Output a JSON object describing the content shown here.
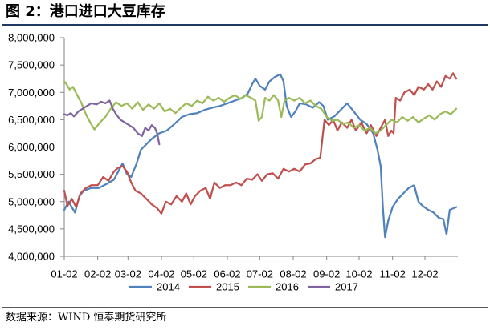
{
  "chart_data": {
    "type": "line",
    "title": "图 2：港口进口大豆库存",
    "xlabel": "",
    "ylabel": "",
    "xlim": [
      "01-02",
      "12-31"
    ],
    "ylim": [
      4000000,
      8000000
    ],
    "x_ticks": [
      "01-02",
      "02-02",
      "03-02",
      "04-02",
      "05-02",
      "06-02",
      "07-02",
      "08-02",
      "09-02",
      "10-02",
      "11-02",
      "12-02"
    ],
    "y_ticks": [
      "4,000,000",
      "4,500,000",
      "5,000,000",
      "5,500,000",
      "6,000,000",
      "6,500,000",
      "7,000,000",
      "7,500,000",
      "8,000,000"
    ],
    "grid": false,
    "legend": "bottom",
    "series": [
      {
        "name": "2014",
        "color": "#4f81bd",
        "points": [
          [
            "01-02",
            4850000
          ],
          [
            "01-06",
            5000000
          ],
          [
            "01-12",
            4800000
          ],
          [
            "01-16",
            5100000
          ],
          [
            "01-20",
            5200000
          ],
          [
            "01-27",
            5250000
          ],
          [
            "02-03",
            5250000
          ],
          [
            "02-10",
            5320000
          ],
          [
            "02-17",
            5400000
          ],
          [
            "02-21",
            5550000
          ],
          [
            "02-25",
            5700000
          ],
          [
            "03-01",
            5500000
          ],
          [
            "03-05",
            5450000
          ],
          [
            "03-10",
            5700000
          ],
          [
            "03-14",
            5950000
          ],
          [
            "03-19",
            6050000
          ],
          [
            "03-24",
            6150000
          ],
          [
            "03-31",
            6250000
          ],
          [
            "04-07",
            6300000
          ],
          [
            "04-14",
            6420000
          ],
          [
            "04-21",
            6550000
          ],
          [
            "04-28",
            6600000
          ],
          [
            "05-05",
            6620000
          ],
          [
            "05-12",
            6680000
          ],
          [
            "05-19",
            6720000
          ],
          [
            "05-26",
            6750000
          ],
          [
            "06-02",
            6800000
          ],
          [
            "06-09",
            6850000
          ],
          [
            "06-16",
            6900000
          ],
          [
            "06-21",
            6980000
          ],
          [
            "06-25",
            7150000
          ],
          [
            "06-28",
            7250000
          ],
          [
            "07-02",
            7120000
          ],
          [
            "07-07",
            7050000
          ],
          [
            "07-11",
            7200000
          ],
          [
            "07-16",
            7280000
          ],
          [
            "07-21",
            7330000
          ],
          [
            "07-24",
            7200000
          ],
          [
            "07-27",
            6750000
          ],
          [
            "07-31",
            6550000
          ],
          [
            "08-04",
            6650000
          ],
          [
            "08-08",
            6800000
          ],
          [
            "08-14",
            6780000
          ],
          [
            "08-20",
            6720000
          ],
          [
            "08-26",
            6820000
          ],
          [
            "08-30",
            6750000
          ],
          [
            "09-03",
            6500000
          ],
          [
            "09-09",
            6560000
          ],
          [
            "09-15",
            6680000
          ],
          [
            "09-21",
            6800000
          ],
          [
            "09-27",
            6650000
          ],
          [
            "10-03",
            6500000
          ],
          [
            "10-09",
            6420000
          ],
          [
            "10-15",
            6250000
          ],
          [
            "10-19",
            5950000
          ],
          [
            "10-22",
            5650000
          ],
          [
            "10-24",
            4900000
          ],
          [
            "10-26",
            4350000
          ],
          [
            "10-29",
            4650000
          ],
          [
            "11-02",
            4900000
          ],
          [
            "11-07",
            5050000
          ],
          [
            "11-12",
            5150000
          ],
          [
            "11-17",
            5250000
          ],
          [
            "11-22",
            5300000
          ],
          [
            "11-26",
            5000000
          ],
          [
            "11-30",
            4920000
          ],
          [
            "12-05",
            4850000
          ],
          [
            "12-10",
            4800000
          ],
          [
            "12-15",
            4700000
          ],
          [
            "12-19",
            4680000
          ],
          [
            "12-22",
            4400000
          ],
          [
            "12-25",
            4850000
          ],
          [
            "12-31",
            4900000
          ]
        ]
      },
      {
        "name": "2015",
        "color": "#c0504d",
        "points": [
          [
            "01-02",
            5200000
          ],
          [
            "01-05",
            4920000
          ],
          [
            "01-09",
            5050000
          ],
          [
            "01-13",
            4900000
          ],
          [
            "01-17",
            5150000
          ],
          [
            "01-22",
            5250000
          ],
          [
            "01-27",
            5300000
          ],
          [
            "02-02",
            5300000
          ],
          [
            "02-07",
            5450000
          ],
          [
            "02-12",
            5380000
          ],
          [
            "02-17",
            5550000
          ],
          [
            "02-21",
            5620000
          ],
          [
            "02-25",
            5650000
          ],
          [
            "03-01",
            5550000
          ],
          [
            "03-05",
            5350000
          ],
          [
            "03-09",
            5200000
          ],
          [
            "03-14",
            5150000
          ],
          [
            "03-19",
            5050000
          ],
          [
            "03-24",
            4950000
          ],
          [
            "03-29",
            4880000
          ],
          [
            "04-02",
            4780000
          ],
          [
            "04-06",
            5000000
          ],
          [
            "04-11",
            4950000
          ],
          [
            "04-16",
            5100000
          ],
          [
            "04-21",
            5000000
          ],
          [
            "04-25",
            5150000
          ],
          [
            "04-29",
            4950000
          ],
          [
            "05-03",
            5100000
          ],
          [
            "05-08",
            5200000
          ],
          [
            "05-13",
            5250000
          ],
          [
            "05-17",
            5050000
          ],
          [
            "05-21",
            5350000
          ],
          [
            "05-26",
            5250000
          ],
          [
            "05-31",
            5300000
          ],
          [
            "06-05",
            5300000
          ],
          [
            "06-10",
            5350000
          ],
          [
            "06-15",
            5300000
          ],
          [
            "06-20",
            5420000
          ],
          [
            "06-25",
            5400000
          ],
          [
            "06-30",
            5500000
          ],
          [
            "07-04",
            5380000
          ],
          [
            "07-09",
            5500000
          ],
          [
            "07-14",
            5520000
          ],
          [
            "07-19",
            5420000
          ],
          [
            "07-24",
            5600000
          ],
          [
            "07-29",
            5550000
          ],
          [
            "08-03",
            5600000
          ],
          [
            "08-08",
            5550000
          ],
          [
            "08-13",
            5680000
          ],
          [
            "08-18",
            5700000
          ],
          [
            "08-23",
            5780000
          ],
          [
            "08-27",
            5800000
          ],
          [
            "08-29",
            6150000
          ],
          [
            "08-31",
            6500000
          ],
          [
            "09-04",
            6400000
          ],
          [
            "09-08",
            6500000
          ],
          [
            "09-12",
            6300000
          ],
          [
            "09-16",
            6450000
          ],
          [
            "09-21",
            6350000
          ],
          [
            "09-25",
            6500000
          ],
          [
            "09-29",
            6300000
          ],
          [
            "10-04",
            6450000
          ],
          [
            "10-09",
            6250000
          ],
          [
            "10-13",
            6400000
          ],
          [
            "10-18",
            6200000
          ],
          [
            "10-22",
            6350000
          ],
          [
            "10-26",
            6500000
          ],
          [
            "10-29",
            6200000
          ],
          [
            "11-01",
            6300000
          ],
          [
            "11-03",
            6250000
          ],
          [
            "11-05",
            6900000
          ],
          [
            "11-09",
            6850000
          ],
          [
            "11-13",
            7000000
          ],
          [
            "11-18",
            7050000
          ],
          [
            "11-22",
            6950000
          ],
          [
            "11-26",
            7100000
          ],
          [
            "12-01",
            7050000
          ],
          [
            "12-05",
            7150000
          ],
          [
            "12-09",
            7050000
          ],
          [
            "12-13",
            7200000
          ],
          [
            "12-17",
            7100000
          ],
          [
            "12-21",
            7300000
          ],
          [
            "12-25",
            7250000
          ],
          [
            "12-28",
            7350000
          ],
          [
            "12-31",
            7250000
          ]
        ]
      },
      {
        "name": "2016",
        "color": "#9bbb59",
        "points": [
          [
            "01-02",
            7200000
          ],
          [
            "01-04",
            7150000
          ],
          [
            "01-07",
            7050000
          ],
          [
            "01-10",
            7100000
          ],
          [
            "01-14",
            6950000
          ],
          [
            "01-18",
            6800000
          ],
          [
            "01-22",
            6600000
          ],
          [
            "01-26",
            6450000
          ],
          [
            "01-30",
            6320000
          ],
          [
            "02-04",
            6450000
          ],
          [
            "02-09",
            6550000
          ],
          [
            "02-14",
            6700000
          ],
          [
            "02-19",
            6820000
          ],
          [
            "02-24",
            6750000
          ],
          [
            "03-01",
            6800000
          ],
          [
            "03-06",
            6700000
          ],
          [
            "03-11",
            6820000
          ],
          [
            "03-16",
            6680000
          ],
          [
            "03-21",
            6780000
          ],
          [
            "03-26",
            6700000
          ],
          [
            "03-31",
            6800000
          ],
          [
            "04-05",
            6650000
          ],
          [
            "04-10",
            6700000
          ],
          [
            "04-15",
            6620000
          ],
          [
            "04-20",
            6720000
          ],
          [
            "04-25",
            6800000
          ],
          [
            "04-30",
            6750000
          ],
          [
            "05-05",
            6850000
          ],
          [
            "05-10",
            6800000
          ],
          [
            "05-15",
            6920000
          ],
          [
            "05-20",
            6850000
          ],
          [
            "05-25",
            6900000
          ],
          [
            "05-30",
            6830000
          ],
          [
            "06-04",
            6900000
          ],
          [
            "06-09",
            6950000
          ],
          [
            "06-14",
            6880000
          ],
          [
            "06-19",
            6950000
          ],
          [
            "06-24",
            6900000
          ],
          [
            "06-28",
            6850000
          ],
          [
            "07-01",
            6480000
          ],
          [
            "07-04",
            6550000
          ],
          [
            "07-07",
            6900000
          ],
          [
            "07-11",
            6850000
          ],
          [
            "07-15",
            6950000
          ],
          [
            "07-19",
            6850000
          ],
          [
            "07-22",
            6550000
          ],
          [
            "07-25",
            6850000
          ],
          [
            "07-29",
            6900000
          ],
          [
            "08-03",
            6850000
          ],
          [
            "08-08",
            6900000
          ],
          [
            "08-13",
            6800000
          ],
          [
            "08-18",
            6850000
          ],
          [
            "08-23",
            6750000
          ],
          [
            "08-28",
            6700000
          ],
          [
            "09-02",
            6550000
          ],
          [
            "09-07",
            6480000
          ],
          [
            "09-12",
            6500000
          ],
          [
            "09-17",
            6420000
          ],
          [
            "09-22",
            6450000
          ],
          [
            "09-27",
            6350000
          ],
          [
            "10-02",
            6400000
          ],
          [
            "10-07",
            6300000
          ],
          [
            "10-12",
            6350000
          ],
          [
            "10-17",
            6250000
          ],
          [
            "10-22",
            6300000
          ],
          [
            "10-27",
            6400000
          ],
          [
            "11-01",
            6500000
          ],
          [
            "11-06",
            6450000
          ],
          [
            "11-11",
            6550000
          ],
          [
            "11-16",
            6480000
          ],
          [
            "11-21",
            6550000
          ],
          [
            "11-26",
            6450000
          ],
          [
            "12-01",
            6520000
          ],
          [
            "12-06",
            6580000
          ],
          [
            "12-11",
            6500000
          ],
          [
            "12-16",
            6600000
          ],
          [
            "12-21",
            6650000
          ],
          [
            "12-26",
            6600000
          ],
          [
            "12-31",
            6700000
          ]
        ]
      },
      {
        "name": "2017",
        "color": "#8064a2",
        "points": [
          [
            "01-02",
            6600000
          ],
          [
            "01-05",
            6580000
          ],
          [
            "01-08",
            6620000
          ],
          [
            "01-11",
            6560000
          ],
          [
            "01-15",
            6650000
          ],
          [
            "01-19",
            6700000
          ],
          [
            "01-23",
            6750000
          ],
          [
            "01-27",
            6800000
          ],
          [
            "02-01",
            6780000
          ],
          [
            "02-05",
            6830000
          ],
          [
            "02-09",
            6800000
          ],
          [
            "02-13",
            6850000
          ],
          [
            "02-16",
            6700000
          ],
          [
            "02-19",
            6600000
          ],
          [
            "02-23",
            6500000
          ],
          [
            "02-27",
            6450000
          ],
          [
            "03-03",
            6400000
          ],
          [
            "03-07",
            6350000
          ],
          [
            "03-11",
            6250000
          ],
          [
            "03-15",
            6200000
          ],
          [
            "03-18",
            6350000
          ],
          [
            "03-21",
            6300000
          ],
          [
            "03-24",
            6400000
          ],
          [
            "03-27",
            6350000
          ],
          [
            "03-29",
            6250000
          ],
          [
            "03-31",
            6050000
          ]
        ]
      }
    ]
  },
  "source": "数据来源：WIND 恒泰期货研究所"
}
